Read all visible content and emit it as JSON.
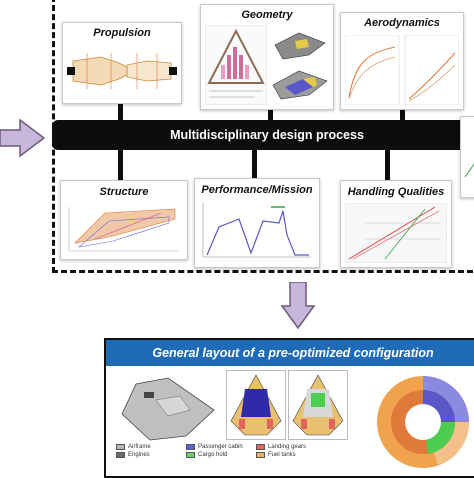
{
  "process": {
    "title": "Multidisciplinary design process"
  },
  "cards": {
    "propulsion": "Propulsion",
    "geometry": "Geometry",
    "aerodynamics": "Aerodynamics",
    "structure": "Structure",
    "performance": "Performance/Mission",
    "handling": "Handling Qualities"
  },
  "layout_panel": {
    "title": "General layout of a pre-optimized configuration",
    "legend": [
      {
        "label": "Airframe",
        "color": "#b8b8b8"
      },
      {
        "label": "Passenger cabin",
        "color": "#5b62d6"
      },
      {
        "label": "Landing gears",
        "color": "#e0665b"
      },
      {
        "label": "Engines",
        "color": "#6b6b6b"
      },
      {
        "label": "Cargo hold",
        "color": "#69d26a"
      },
      {
        "label": "Fuel tanks",
        "color": "#e9b85a"
      }
    ]
  },
  "colors": {
    "arrow_fill": "#c9b6dc",
    "arrow_stroke": "#6a5a7a",
    "header_blue": "#1f6bb8"
  }
}
